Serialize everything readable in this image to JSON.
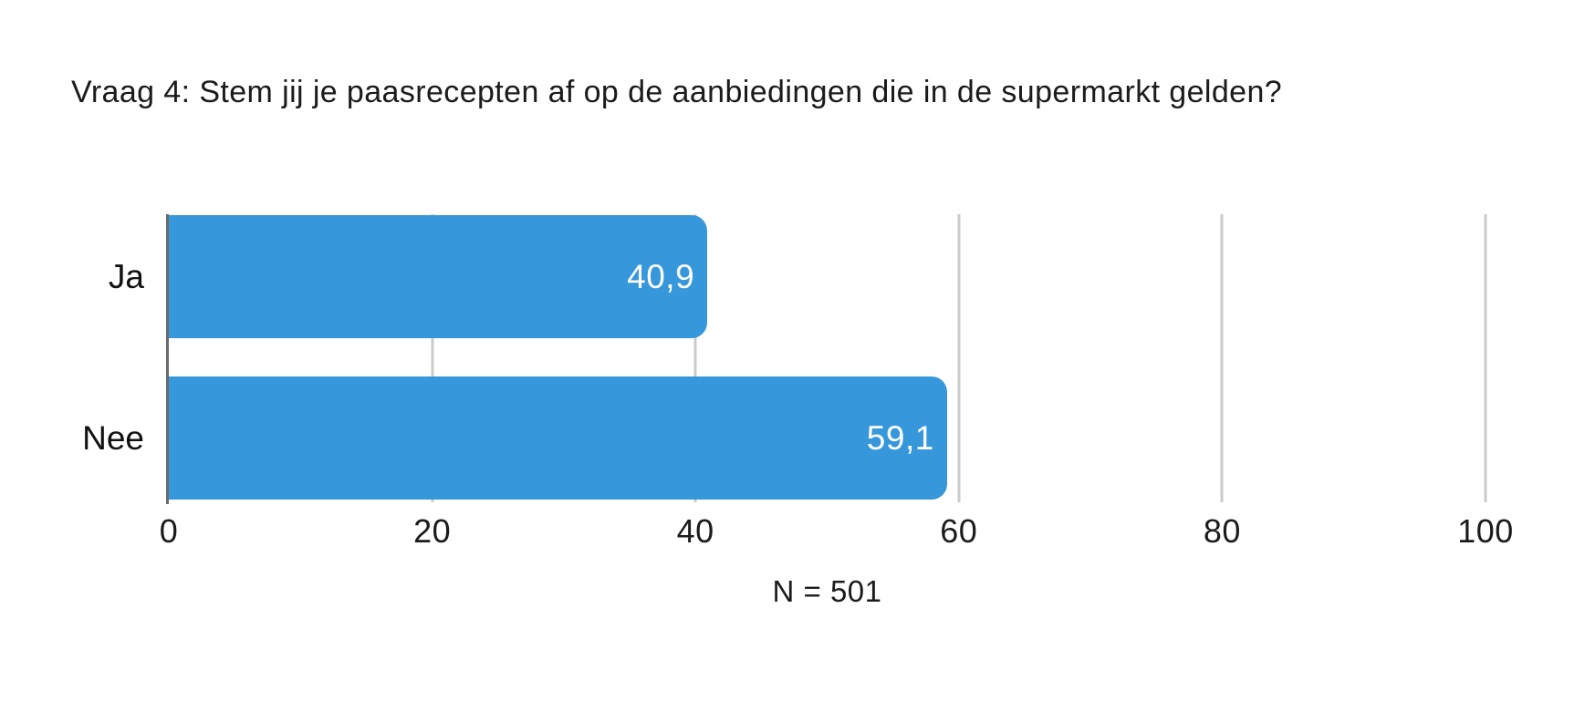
{
  "chart_data": {
    "type": "bar",
    "orientation": "horizontal",
    "title": "Vraag 4: Stem jij je paasrecepten af op de aanbiedingen die in de supermarkt gelden?",
    "categories": [
      "Ja",
      "Nee"
    ],
    "values": [
      40.9,
      59.1
    ],
    "value_labels": [
      "40,9",
      "59,1"
    ],
    "x_ticks": [
      0,
      20,
      40,
      60,
      80,
      100
    ],
    "x_tick_labels": [
      "0",
      "20",
      "40",
      "60",
      "80",
      "100"
    ],
    "xlim": [
      0,
      100
    ],
    "note": "N = 501",
    "grid": true,
    "legend": false,
    "colors": {
      "bar": "#3797DB",
      "gridline": "#CBCBCB",
      "axis_line": "#6A6A6A",
      "value_label": "#FFFFFF",
      "text": "#1B1B1B"
    }
  }
}
